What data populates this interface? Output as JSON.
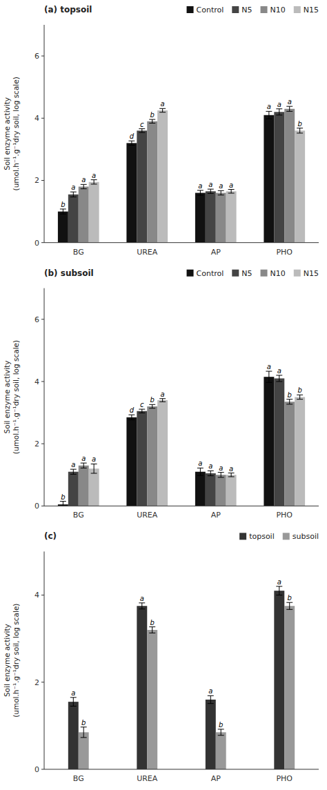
{
  "chart_data": [
    {
      "type": "bar",
      "title": "(a) topsoil",
      "categories": [
        "BG",
        "UREA",
        "AP",
        "PHO"
      ],
      "ylabel": "Soil enzyme activity\n(umol.h⁻¹.g⁻¹dry soil, log scale)",
      "series": [
        {
          "name": "Control",
          "color": "#111111",
          "values": [
            1.0,
            3.2,
            1.6,
            4.1
          ],
          "errors": [
            0.08,
            0.07,
            0.08,
            0.12
          ],
          "sig_labels": [
            "b",
            "d",
            "a",
            "a"
          ]
        },
        {
          "name": "N5",
          "color": "#444444",
          "values": [
            1.55,
            3.6,
            1.65,
            4.2
          ],
          "errors": [
            0.08,
            0.06,
            0.07,
            0.1
          ],
          "sig_labels": [
            "a",
            "c",
            "a",
            "a"
          ]
        },
        {
          "name": "N10",
          "color": "#888888",
          "values": [
            1.8,
            3.9,
            1.6,
            4.3
          ],
          "errors": [
            0.07,
            0.06,
            0.07,
            0.08
          ],
          "sig_labels": [
            "a",
            "b",
            "a",
            "a"
          ]
        },
        {
          "name": "N15",
          "color": "#bbbbbb",
          "values": [
            1.95,
            4.25,
            1.65,
            3.6
          ],
          "errors": [
            0.07,
            0.06,
            0.06,
            0.08
          ],
          "sig_labels": [
            "a",
            "a",
            "a",
            "b"
          ]
        }
      ],
      "ylim": [
        0,
        7
      ],
      "yticks": [
        0,
        2,
        4,
        6
      ],
      "grid": false,
      "legend": "upper right"
    },
    {
      "type": "bar",
      "title": "(b) subsoil",
      "categories": [
        "BG",
        "UREA",
        "AP",
        "PHO"
      ],
      "ylabel": "Soil enzyme activity\n(umol.h⁻¹.g⁻¹dry soil, log scale)",
      "series": [
        {
          "name": "Control",
          "color": "#111111",
          "values": [
            0.05,
            2.85,
            1.1,
            4.15
          ],
          "errors": [
            0.1,
            0.08,
            0.12,
            0.18
          ],
          "sig_labels": [
            "b",
            "d",
            "a",
            "a"
          ]
        },
        {
          "name": "N5",
          "color": "#444444",
          "values": [
            1.1,
            3.05,
            1.05,
            4.1
          ],
          "errors": [
            0.08,
            0.06,
            0.08,
            0.1
          ],
          "sig_labels": [
            "a",
            "c",
            "a",
            "a"
          ]
        },
        {
          "name": "N10",
          "color": "#888888",
          "values": [
            1.3,
            3.2,
            1.0,
            3.35
          ],
          "errors": [
            0.08,
            0.06,
            0.08,
            0.08
          ],
          "sig_labels": [
            "a",
            "b",
            "a",
            "b"
          ]
        },
        {
          "name": "N15",
          "color": "#bbbbbb",
          "values": [
            1.2,
            3.4,
            1.0,
            3.5
          ],
          "errors": [
            0.15,
            0.05,
            0.06,
            0.07
          ],
          "sig_labels": [
            "a",
            "a",
            "a",
            "b"
          ]
        }
      ],
      "ylim": [
        0,
        7
      ],
      "yticks": [
        0,
        2,
        4,
        6
      ],
      "grid": false,
      "legend": "upper right"
    },
    {
      "type": "bar",
      "title": "(c)",
      "categories": [
        "BG",
        "UREA",
        "AP",
        "PHO"
      ],
      "ylabel": "Soil enzyme activity\n(umol.h⁻¹.g⁻¹dry soil, log scale)",
      "series": [
        {
          "name": "topsoil",
          "color": "#333333",
          "values": [
            1.55,
            3.75,
            1.6,
            4.1
          ],
          "errors": [
            0.1,
            0.07,
            0.09,
            0.1
          ],
          "sig_labels": [
            "a",
            "a",
            "a",
            "a"
          ]
        },
        {
          "name": "subsoil",
          "color": "#999999",
          "values": [
            0.85,
            3.2,
            0.85,
            3.75
          ],
          "errors": [
            0.12,
            0.07,
            0.07,
            0.08
          ],
          "sig_labels": [
            "b",
            "b",
            "b",
            "b"
          ]
        }
      ],
      "ylim": [
        0,
        5
      ],
      "yticks": [
        0,
        2,
        4
      ],
      "grid": false,
      "legend": "upper right"
    }
  ]
}
